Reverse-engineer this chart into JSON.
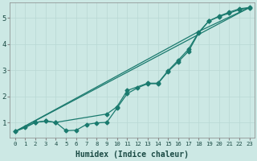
{
  "title": "",
  "xlabel": "Humidex (Indice chaleur)",
  "bg_color": "#cce8e4",
  "line_color": "#1a7a6e",
  "grid_color": "#b8d8d4",
  "xlim": [
    -0.5,
    23.5
  ],
  "ylim": [
    0.4,
    5.6
  ],
  "xticks": [
    0,
    1,
    2,
    3,
    4,
    5,
    6,
    7,
    8,
    9,
    10,
    11,
    12,
    13,
    14,
    15,
    16,
    17,
    18,
    19,
    20,
    21,
    22,
    23
  ],
  "yticks": [
    1,
    2,
    3,
    4,
    5
  ],
  "line1_x": [
    0,
    1,
    2,
    3,
    4,
    5,
    6,
    7,
    8,
    9,
    10,
    11,
    12,
    13,
    14,
    15,
    16,
    17,
    18,
    19,
    20,
    21,
    22,
    23
  ],
  "line1_y": [
    0.65,
    0.8,
    1.0,
    1.05,
    1.0,
    0.68,
    0.7,
    0.92,
    0.98,
    1.0,
    1.55,
    2.1,
    2.32,
    2.48,
    2.48,
    2.95,
    3.32,
    3.72,
    4.42,
    4.88,
    5.05,
    5.18,
    5.32,
    5.38
  ],
  "line2_x": [
    0,
    2,
    3,
    4,
    9,
    10,
    11,
    13,
    14,
    15,
    16,
    17,
    18,
    19,
    20,
    21,
    22,
    23
  ],
  "line2_y": [
    0.65,
    1.0,
    1.05,
    1.0,
    1.32,
    1.6,
    2.22,
    2.5,
    2.5,
    2.98,
    3.38,
    3.8,
    4.45,
    4.88,
    5.07,
    5.22,
    5.35,
    5.4
  ],
  "line3_x": [
    0,
    23
  ],
  "line3_y": [
    0.65,
    5.4
  ],
  "line4_x": [
    0,
    18,
    23
  ],
  "line4_y": [
    0.65,
    4.48,
    5.4
  ],
  "marker": "D",
  "markersize": 2.5,
  "linewidth": 0.9
}
